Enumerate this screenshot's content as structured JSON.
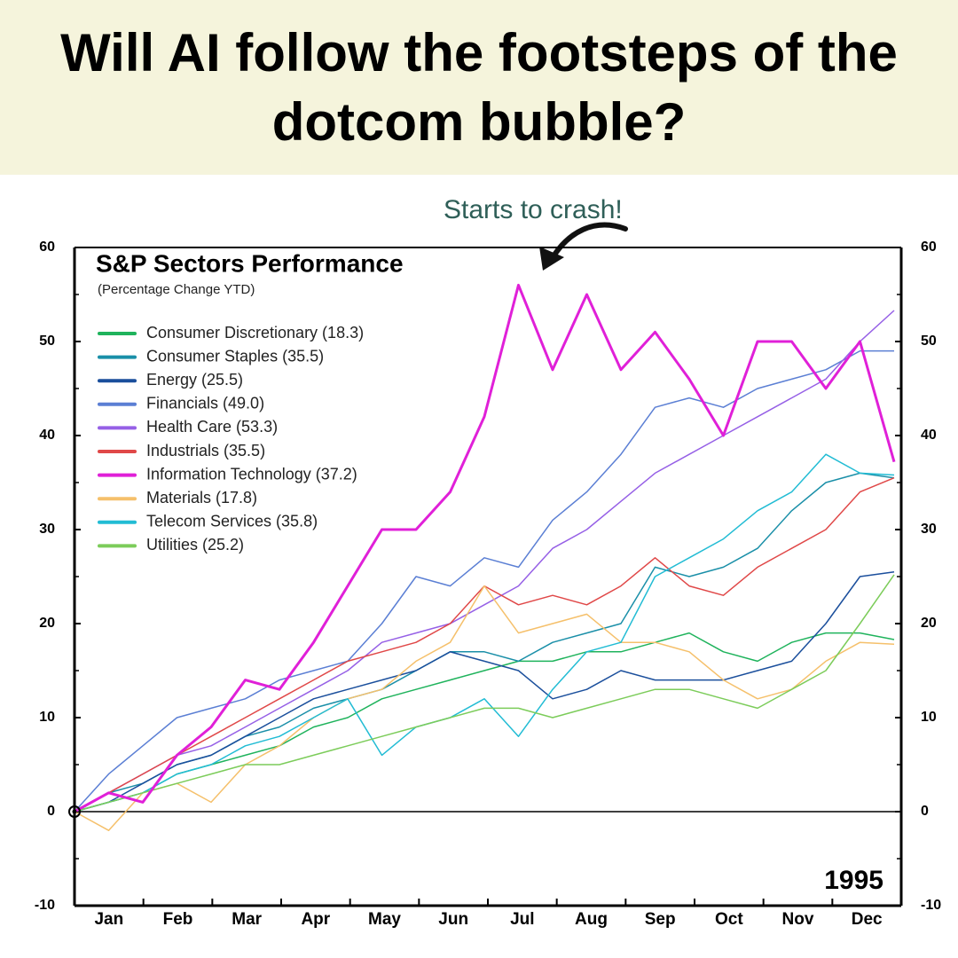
{
  "header": {
    "title": "Will AI follow the footsteps of the dotcom bubble?"
  },
  "chart_data": {
    "type": "line",
    "title": "S&P Sectors Performance",
    "subtitle": "(Percentage Change YTD)",
    "annotation": "Starts to crash!",
    "year_label": "1995",
    "x_labels": [
      "Jan",
      "Feb",
      "Mar",
      "Apr",
      "May",
      "Jun",
      "Jul",
      "Aug",
      "Sep",
      "Oct",
      "Nov",
      "Dec"
    ],
    "ylim": [
      -10,
      60
    ],
    "yticks": [
      -10,
      0,
      10,
      20,
      30,
      40,
      50,
      60
    ],
    "y2lim": [
      -10,
      60
    ],
    "y2ticks": [
      -10,
      0,
      10,
      20,
      30,
      40,
      50,
      60
    ],
    "series": [
      {
        "name": "Consumer Discretionary (18.3)",
        "color": "#1fb35c",
        "values": [
          0,
          1,
          2,
          4,
          5,
          6,
          7,
          9,
          10,
          12,
          13,
          14,
          15,
          16,
          16,
          17,
          17,
          18,
          19,
          17,
          16,
          18,
          19,
          19,
          18.3
        ]
      },
      {
        "name": "Consumer Staples (35.5)",
        "color": "#1a8fa8",
        "values": [
          0,
          2,
          3,
          5,
          6,
          8,
          9,
          11,
          12,
          13,
          15,
          17,
          17,
          16,
          18,
          19,
          20,
          26,
          25,
          26,
          28,
          32,
          35,
          36,
          35.5
        ]
      },
      {
        "name": "Energy (25.5)",
        "color": "#1b4f9c",
        "values": [
          0,
          1,
          3,
          5,
          6,
          8,
          10,
          12,
          13,
          14,
          15,
          17,
          16,
          15,
          12,
          13,
          15,
          14,
          14,
          14,
          15,
          16,
          20,
          25,
          25.5
        ]
      },
      {
        "name": "Financials (49.0)",
        "color": "#5b7fd4",
        "values": [
          0,
          4,
          7,
          10,
          11,
          12,
          14,
          15,
          16,
          20,
          25,
          24,
          27,
          26,
          31,
          34,
          38,
          43,
          44,
          43,
          45,
          46,
          47,
          49,
          49.0
        ]
      },
      {
        "name": "Health Care (53.3)",
        "color": "#9660e6",
        "values": [
          0,
          2,
          4,
          6,
          7,
          9,
          11,
          13,
          15,
          18,
          19,
          20,
          22,
          24,
          28,
          30,
          33,
          36,
          38,
          40,
          42,
          44,
          46,
          50,
          53.3
        ]
      },
      {
        "name": "Industrials (35.5)",
        "color": "#e04848",
        "values": [
          0,
          2,
          4,
          6,
          8,
          10,
          12,
          14,
          16,
          17,
          18,
          20,
          24,
          22,
          23,
          22,
          24,
          27,
          24,
          23,
          26,
          28,
          30,
          34,
          35.5
        ]
      },
      {
        "name": "Information Technology (37.2)",
        "color": "#e020d8",
        "values": [
          0,
          2,
          1,
          6,
          9,
          14,
          13,
          18,
          24,
          30,
          30,
          34,
          42,
          56,
          47,
          55,
          47,
          51,
          46,
          40,
          50,
          50,
          45,
          50,
          37.2
        ]
      },
      {
        "name": "Materials (17.8)",
        "color": "#f5c06b",
        "values": [
          0,
          -2,
          2,
          3,
          1,
          5,
          7,
          10,
          12,
          13,
          16,
          18,
          24,
          19,
          20,
          21,
          18,
          18,
          17,
          14,
          12,
          13,
          16,
          18,
          17.8
        ]
      },
      {
        "name": "Telecom Services (35.8)",
        "color": "#22bcd4",
        "values": [
          0,
          1,
          2,
          4,
          5,
          7,
          8,
          10,
          12,
          6,
          9,
          10,
          12,
          8,
          13,
          17,
          18,
          25,
          27,
          29,
          32,
          34,
          38,
          36,
          35.8
        ]
      },
      {
        "name": "Utilities (25.2)",
        "color": "#7ccc5a",
        "values": [
          0,
          1,
          2,
          3,
          4,
          5,
          5,
          6,
          7,
          8,
          9,
          10,
          11,
          11,
          10,
          11,
          12,
          13,
          13,
          12,
          11,
          13,
          15,
          20,
          25.2
        ]
      }
    ]
  }
}
